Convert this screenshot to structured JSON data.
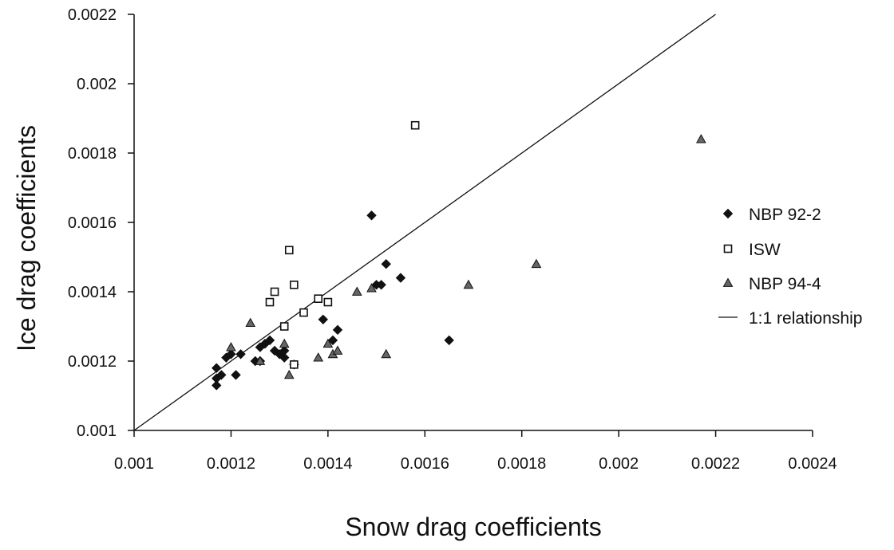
{
  "chart_data": {
    "type": "scatter",
    "title": "",
    "xlabel": "Snow drag coefficients",
    "ylabel": "Ice drag coefficients",
    "xlim": [
      0.001,
      0.0024
    ],
    "ylim": [
      0.001,
      0.0022
    ],
    "x_ticks": [
      "0.001",
      "0.0012",
      "0.0014",
      "0.0016",
      "0.0018",
      "0.002",
      "0.0022",
      "0.0024"
    ],
    "y_ticks": [
      "0.001",
      "0.0012",
      "0.0014",
      "0.0016",
      "0.0018",
      "0.002",
      "0.0022"
    ],
    "grid": false,
    "legend_position": "right",
    "series": [
      {
        "name": "NBP 92-2",
        "marker": "diamond",
        "points": [
          [
            0.00117,
            0.00113
          ],
          [
            0.00117,
            0.00115
          ],
          [
            0.00117,
            0.00118
          ],
          [
            0.00118,
            0.00116
          ],
          [
            0.00119,
            0.00121
          ],
          [
            0.0012,
            0.00122
          ],
          [
            0.00121,
            0.00116
          ],
          [
            0.00122,
            0.00122
          ],
          [
            0.00125,
            0.0012
          ],
          [
            0.00126,
            0.0012
          ],
          [
            0.00126,
            0.00124
          ],
          [
            0.00127,
            0.00125
          ],
          [
            0.00128,
            0.00126
          ],
          [
            0.00129,
            0.00123
          ],
          [
            0.0013,
            0.00122
          ],
          [
            0.00131,
            0.00121
          ],
          [
            0.00131,
            0.00123
          ],
          [
            0.00133,
            0.00119
          ],
          [
            0.00139,
            0.00132
          ],
          [
            0.00141,
            0.00126
          ],
          [
            0.00142,
            0.00129
          ],
          [
            0.00149,
            0.00162
          ],
          [
            0.0015,
            0.00142
          ],
          [
            0.00151,
            0.00142
          ],
          [
            0.00152,
            0.00148
          ],
          [
            0.00155,
            0.00144
          ],
          [
            0.00165,
            0.00126
          ]
        ]
      },
      {
        "name": "ISW",
        "marker": "square-open",
        "points": [
          [
            0.00128,
            0.00137
          ],
          [
            0.00129,
            0.0014
          ],
          [
            0.00131,
            0.0013
          ],
          [
            0.00132,
            0.00152
          ],
          [
            0.00133,
            0.00142
          ],
          [
            0.00133,
            0.00119
          ],
          [
            0.00135,
            0.00134
          ],
          [
            0.00138,
            0.00138
          ],
          [
            0.0014,
            0.00137
          ],
          [
            0.00158,
            0.00188
          ]
        ]
      },
      {
        "name": "NBP 94-4",
        "marker": "triangle",
        "points": [
          [
            0.0012,
            0.00124
          ],
          [
            0.00124,
            0.00131
          ],
          [
            0.00126,
            0.0012
          ],
          [
            0.00131,
            0.00125
          ],
          [
            0.00132,
            0.00116
          ],
          [
            0.00138,
            0.00121
          ],
          [
            0.0014,
            0.00125
          ],
          [
            0.00141,
            0.00122
          ],
          [
            0.00142,
            0.00123
          ],
          [
            0.00146,
            0.0014
          ],
          [
            0.00149,
            0.00141
          ],
          [
            0.00152,
            0.00122
          ],
          [
            0.00169,
            0.00142
          ],
          [
            0.00183,
            0.00148
          ],
          [
            0.00217,
            0.00184
          ]
        ]
      }
    ],
    "reference_line": {
      "name": "1:1 relationship",
      "from": [
        0.001,
        0.001
      ],
      "to": [
        0.0022,
        0.0022
      ]
    }
  }
}
